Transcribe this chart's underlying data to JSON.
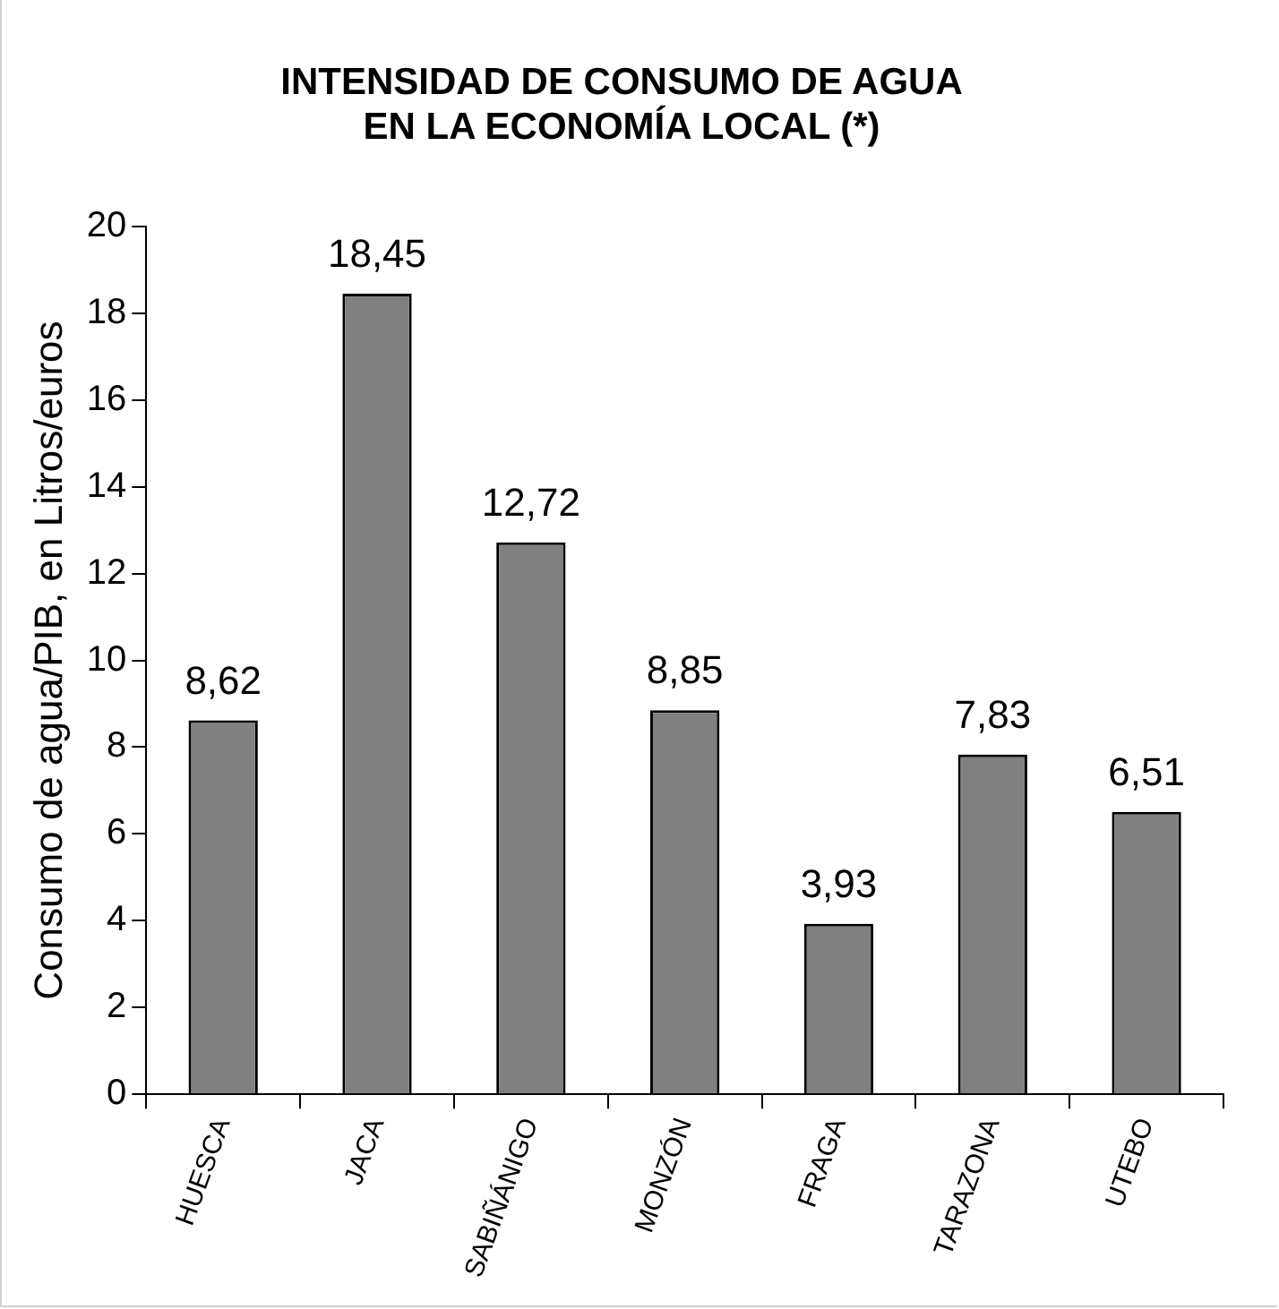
{
  "chart_data": {
    "type": "bar",
    "title": "INTENSIDAD DE CONSUMO DE AGUA EN LA ECONOMÍA LOCAL (*)",
    "ylabel": "Consumo de agua/PIB, en Litros/euros",
    "categories": [
      "HUESCA",
      "JACA",
      "SABIÑÁNIGO",
      "MONZÓN",
      "FRAGA",
      "TARAZONA",
      "UTEBO"
    ],
    "values": [
      8.62,
      18.45,
      12.72,
      8.85,
      3.93,
      7.83,
      6.51
    ],
    "value_labels": [
      "8,62",
      "18,45",
      "12,72",
      "8,85",
      "3,93",
      "7,83",
      "6,51"
    ],
    "color": "#808080",
    "ylim": [
      0,
      20
    ],
    "yticks": [
      0,
      2,
      4,
      6,
      8,
      10,
      12,
      14,
      16,
      18,
      20
    ],
    "grid": false,
    "legend": false
  }
}
